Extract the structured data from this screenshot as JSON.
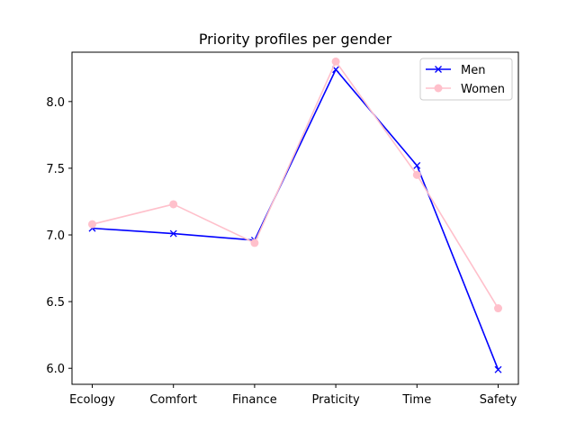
{
  "chart_data": {
    "type": "line",
    "title": "Priority profiles per gender",
    "xlabel": "",
    "ylabel": "",
    "categories": [
      "Ecology",
      "Comfort",
      "Finance",
      "Praticity",
      "Time",
      "Safety"
    ],
    "ylim": [
      5.88,
      8.37
    ],
    "yticks": [
      6.0,
      6.5,
      7.0,
      7.5,
      8.0
    ],
    "ytick_labels": [
      "6.0",
      "6.5",
      "7.0",
      "7.5",
      "8.0"
    ],
    "grid": false,
    "legend_position": "top-right",
    "series": [
      {
        "name": "Men",
        "color": "#0000ff",
        "marker": "x",
        "values": [
          7.05,
          7.01,
          6.96,
          8.24,
          7.52,
          5.99
        ]
      },
      {
        "name": "Women",
        "color": "#ffc0cb",
        "marker": "o",
        "values": [
          7.08,
          7.23,
          6.94,
          8.3,
          7.45,
          6.45
        ]
      }
    ]
  }
}
